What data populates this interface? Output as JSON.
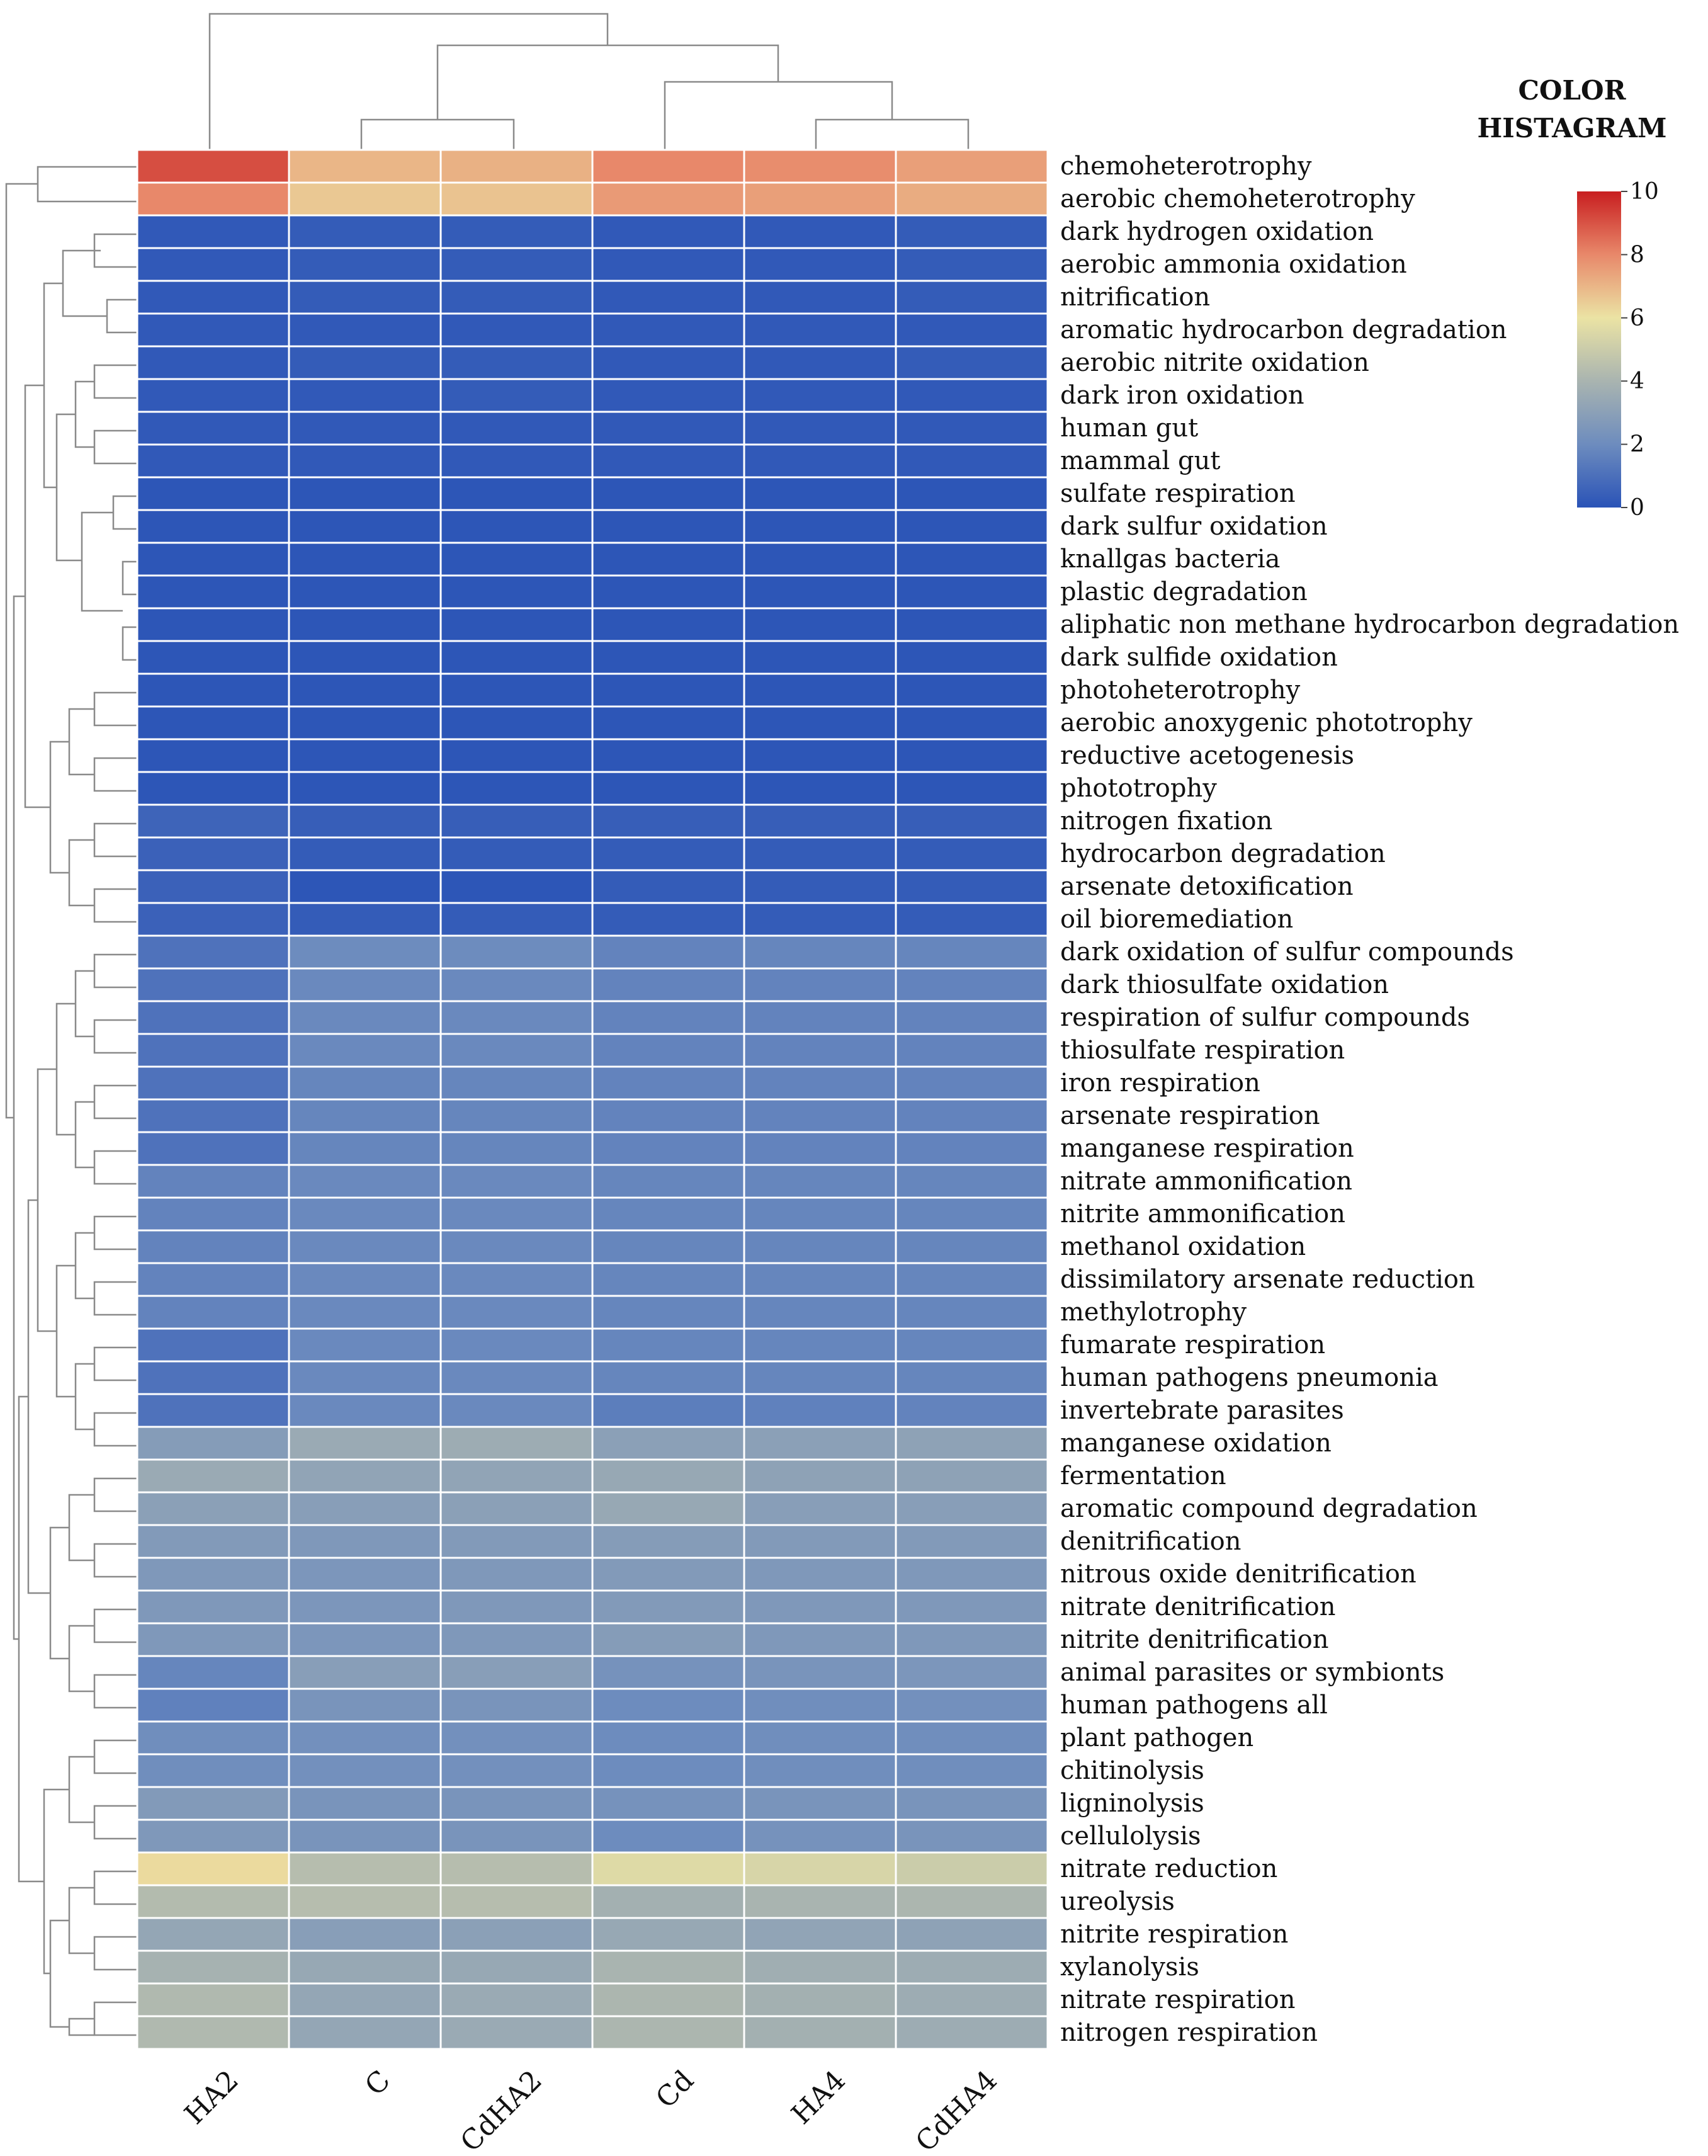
{
  "chart_data": {
    "type": "heatmap",
    "title": "",
    "columns": [
      "HA2",
      "C",
      "CdHA2",
      "Cd",
      "HA4",
      "CdHA4"
    ],
    "rows": [
      "chemoheterotrophy",
      "aerobic chemoheterotrophy",
      "dark hydrogen oxidation",
      "aerobic ammonia oxidation",
      "nitrification",
      "aromatic hydrocarbon degradation",
      "aerobic nitrite oxidation",
      "dark iron oxidation",
      "human gut",
      "mammal gut",
      "sulfate respiration",
      "dark sulfur oxidation",
      "knallgas bacteria",
      "plastic degradation",
      "aliphatic non methane hydrocarbon degradation",
      "dark sulfide oxidation",
      "photoheterotrophy",
      "aerobic anoxygenic phototrophy",
      "reductive acetogenesis",
      "phototrophy",
      "nitrogen fixation",
      "hydrocarbon degradation",
      "arsenate detoxification",
      "oil bioremediation",
      "dark oxidation of sulfur compounds",
      "dark thiosulfate oxidation",
      "respiration of sulfur compounds",
      "thiosulfate respiration",
      "iron respiration",
      "arsenate respiration",
      "manganese respiration",
      "nitrate ammonification",
      "nitrite ammonification",
      "methanol oxidation",
      "dissimilatory arsenate reduction",
      "methylotrophy",
      "fumarate respiration",
      "human pathogens pneumonia",
      "invertebrate parasites",
      "manganese oxidation",
      "fermentation",
      "aromatic compound degradation",
      "denitrification",
      "nitrous oxide denitrification",
      "nitrate denitrification",
      "nitrite denitrification",
      "animal parasites or symbionts",
      "human pathogens all",
      "plant pathogen",
      "chitinolysis",
      "ligninolysis",
      "cellulolysis",
      "nitrate reduction",
      "ureolysis",
      "nitrite respiration",
      "xylanolysis",
      "nitrate respiration",
      "nitrogen respiration"
    ],
    "values": [
      [
        9.1,
        7.0,
        7.1,
        8.0,
        7.9,
        7.5
      ],
      [
        8.0,
        6.6,
        6.7,
        7.6,
        7.5,
        7.2
      ],
      [
        0.2,
        0.3,
        0.3,
        0.2,
        0.2,
        0.3
      ],
      [
        0.2,
        0.3,
        0.3,
        0.2,
        0.2,
        0.3
      ],
      [
        0.2,
        0.3,
        0.3,
        0.2,
        0.2,
        0.3
      ],
      [
        0.2,
        0.2,
        0.2,
        0.2,
        0.2,
        0.2
      ],
      [
        0.2,
        0.3,
        0.3,
        0.2,
        0.2,
        0.3
      ],
      [
        0.2,
        0.2,
        0.3,
        0.2,
        0.2,
        0.2
      ],
      [
        0.2,
        0.2,
        0.2,
        0.2,
        0.2,
        0.2
      ],
      [
        0.2,
        0.2,
        0.2,
        0.2,
        0.2,
        0.2
      ],
      [
        0.1,
        0.1,
        0.1,
        0.1,
        0.1,
        0.1
      ],
      [
        0.1,
        0.1,
        0.1,
        0.1,
        0.1,
        0.1
      ],
      [
        0.1,
        0.1,
        0.1,
        0.1,
        0.1,
        0.1
      ],
      [
        0.1,
        0.1,
        0.1,
        0.1,
        0.1,
        0.1
      ],
      [
        0.1,
        0.1,
        0.1,
        0.1,
        0.1,
        0.1
      ],
      [
        0.1,
        0.1,
        0.1,
        0.1,
        0.1,
        0.1
      ],
      [
        0.1,
        0.1,
        0.1,
        0.1,
        0.1,
        0.1
      ],
      [
        0.1,
        0.1,
        0.1,
        0.1,
        0.1,
        0.1
      ],
      [
        0.1,
        0.1,
        0.1,
        0.1,
        0.1,
        0.1
      ],
      [
        0.1,
        0.1,
        0.1,
        0.1,
        0.1,
        0.1
      ],
      [
        0.6,
        0.4,
        0.4,
        0.4,
        0.4,
        0.4
      ],
      [
        0.5,
        0.3,
        0.3,
        0.3,
        0.3,
        0.3
      ],
      [
        0.5,
        0.1,
        0.1,
        0.3,
        0.3,
        0.3
      ],
      [
        0.5,
        0.3,
        0.3,
        0.3,
        0.3,
        0.3
      ],
      [
        1.1,
        2.0,
        2.0,
        1.7,
        1.8,
        1.8
      ],
      [
        1.1,
        1.9,
        1.9,
        1.7,
        1.7,
        1.7
      ],
      [
        1.1,
        1.9,
        1.9,
        1.7,
        1.7,
        1.7
      ],
      [
        1.1,
        1.9,
        1.9,
        1.7,
        1.7,
        1.7
      ],
      [
        1.1,
        1.8,
        1.8,
        1.7,
        1.7,
        1.7
      ],
      [
        1.1,
        1.8,
        1.8,
        1.7,
        1.7,
        1.7
      ],
      [
        1.1,
        1.8,
        1.8,
        1.7,
        1.7,
        1.7
      ],
      [
        1.7,
        1.9,
        1.9,
        1.8,
        1.8,
        1.8
      ],
      [
        1.7,
        1.9,
        1.9,
        1.8,
        1.8,
        1.8
      ],
      [
        1.7,
        1.9,
        1.9,
        1.8,
        1.8,
        1.8
      ],
      [
        1.7,
        1.9,
        1.9,
        1.8,
        1.8,
        1.8
      ],
      [
        1.7,
        1.9,
        1.9,
        1.8,
        1.8,
        1.8
      ],
      [
        1.1,
        1.9,
        1.9,
        1.8,
        1.8,
        1.8
      ],
      [
        1.1,
        1.9,
        1.9,
        1.8,
        1.8,
        1.8
      ],
      [
        1.1,
        1.9,
        1.9,
        1.5,
        1.6,
        1.7
      ],
      [
        2.8,
        3.5,
        3.6,
        3.0,
        3.0,
        3.1
      ],
      [
        3.5,
        3.2,
        3.2,
        3.4,
        3.1,
        3.1
      ],
      [
        3.0,
        2.9,
        3.0,
        3.4,
        2.9,
        2.9
      ],
      [
        2.7,
        2.6,
        2.7,
        2.8,
        2.7,
        2.7
      ],
      [
        2.6,
        2.5,
        2.6,
        2.7,
        2.6,
        2.6
      ],
      [
        2.6,
        2.5,
        2.6,
        2.7,
        2.6,
        2.6
      ],
      [
        2.6,
        2.5,
        2.6,
        2.8,
        2.6,
        2.6
      ],
      [
        1.8,
        2.9,
        2.9,
        2.3,
        2.4,
        2.5
      ],
      [
        1.6,
        2.4,
        2.4,
        2.0,
        2.1,
        2.2
      ],
      [
        2.1,
        2.2,
        2.2,
        2.0,
        2.1,
        2.1
      ],
      [
        2.1,
        2.2,
        2.2,
        2.0,
        2.1,
        2.1
      ],
      [
        2.7,
        2.4,
        2.4,
        2.3,
        2.4,
        2.4
      ],
      [
        2.6,
        2.4,
        2.4,
        2.0,
        2.3,
        2.4
      ],
      [
        6.2,
        4.4,
        4.4,
        5.6,
        5.4,
        5.0
      ],
      [
        4.3,
        4.4,
        4.4,
        3.8,
        4.0,
        4.1
      ],
      [
        3.3,
        2.9,
        3.0,
        3.4,
        3.2,
        3.1
      ],
      [
        3.9,
        3.4,
        3.4,
        4.0,
        3.7,
        3.6
      ],
      [
        4.2,
        3.3,
        3.5,
        4.1,
        3.8,
        3.6
      ],
      [
        4.2,
        3.3,
        3.5,
        4.1,
        3.8,
        3.6
      ]
    ],
    "color_scale": {
      "title_line1": "COLOR",
      "title_line2": "HISTAGRAM",
      "min": 0,
      "max": 10,
      "ticks": [
        "0",
        "2",
        "4",
        "6",
        "8",
        "10"
      ],
      "colors": [
        "#2a53b7",
        "#6d8cbe",
        "#a9b4b0",
        "#ebe3a4",
        "#e8886a",
        "#c81e20"
      ]
    }
  }
}
